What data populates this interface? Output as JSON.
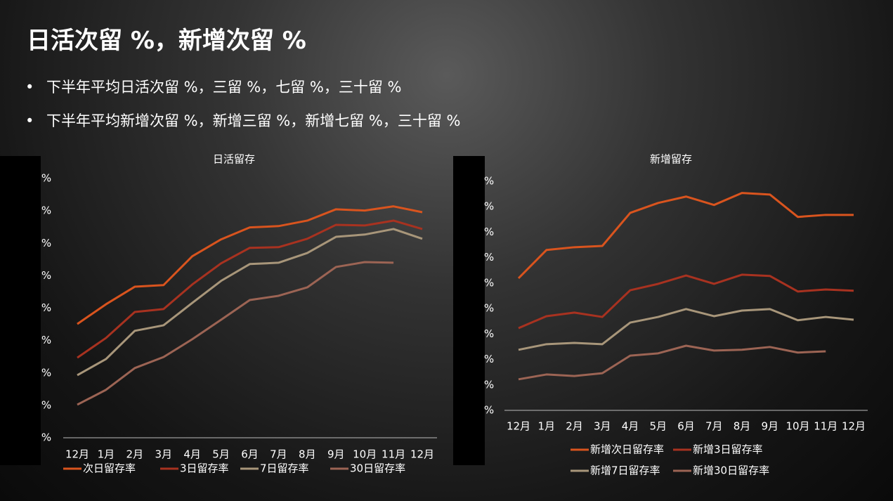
{
  "header": {
    "title": "日活次留 %，新增次留 %"
  },
  "bullets": [
    "下半年平均日活次留 %，三留 %，七留 %，三十留  %",
    "下半年平均新增次留 %，新增三留 %，新增七留 %，三十留  %"
  ],
  "chart_data": [
    {
      "type": "line",
      "title": "日活留存",
      "categories": [
        "12月",
        "1月",
        "2月",
        "3月",
        "4月",
        "5月",
        "6月",
        "7月",
        "8月",
        "9月",
        "10月",
        "11月",
        "12月"
      ],
      "ylim": [
        0,
        8
      ],
      "yticks": [
        {
          "value": 0,
          "label": "%"
        },
        {
          "value": 1,
          "label": "%"
        },
        {
          "value": 2,
          "label": "%"
        },
        {
          "value": 3,
          "label": "%"
        },
        {
          "value": 4,
          "label": "%"
        },
        {
          "value": 5,
          "label": "%"
        },
        {
          "value": 6,
          "label": "%"
        },
        {
          "value": 7,
          "label": "%"
        },
        {
          "value": 8,
          "label": "%"
        }
      ],
      "series": [
        {
          "name": "次日留存率",
          "color": "#d9541e",
          "values": [
            3.51,
            4.12,
            4.66,
            4.71,
            5.6,
            6.12,
            6.49,
            6.53,
            6.7,
            7.05,
            7.01,
            7.14,
            6.96
          ]
        },
        {
          "name": "3日留存率",
          "color": "#a83220",
          "values": [
            2.47,
            3.08,
            3.88,
            3.97,
            4.73,
            5.38,
            5.86,
            5.88,
            6.14,
            6.57,
            6.55,
            6.7,
            6.44
          ]
        },
        {
          "name": "7日留存率",
          "color": "#a8967a",
          "values": [
            1.93,
            2.43,
            3.3,
            3.47,
            4.16,
            4.84,
            5.36,
            5.4,
            5.7,
            6.2,
            6.27,
            6.44,
            6.14
          ]
        },
        {
          "name": "30日留存率",
          "color": "#9c6454",
          "values": [
            1.02,
            1.48,
            2.15,
            2.49,
            3.04,
            3.64,
            4.25,
            4.38,
            4.64,
            5.27,
            5.42,
            5.4,
            null
          ]
        }
      ]
    },
    {
      "type": "line",
      "title": "新增留存",
      "categories": [
        "12月",
        "1月",
        "2月",
        "3月",
        "4月",
        "5月",
        "6月",
        "7月",
        "8月",
        "9月",
        "10月",
        "11月",
        "12月"
      ],
      "ylim": [
        0,
        9
      ],
      "yticks": [
        {
          "value": 0,
          "label": "%"
        },
        {
          "value": 1,
          "label": "%"
        },
        {
          "value": 2,
          "label": "%"
        },
        {
          "value": 3,
          "label": "%"
        },
        {
          "value": 4,
          "label": "%"
        },
        {
          "value": 5,
          "label": "%"
        },
        {
          "value": 6,
          "label": "%"
        },
        {
          "value": 7,
          "label": "%"
        },
        {
          "value": 8,
          "label": "%"
        },
        {
          "value": 9,
          "label": "%"
        }
      ],
      "series": [
        {
          "name": "新增次日留存率",
          "color": "#d9541e",
          "values": [
            5.19,
            6.3,
            6.41,
            6.46,
            7.76,
            8.15,
            8.4,
            8.07,
            8.54,
            8.48,
            7.6,
            7.68,
            7.68
          ]
        },
        {
          "name": "新增3日留存率",
          "color": "#a83220",
          "values": [
            3.23,
            3.7,
            3.84,
            3.67,
            4.72,
            4.97,
            5.3,
            4.97,
            5.33,
            5.28,
            4.67,
            4.75,
            4.7
          ]
        },
        {
          "name": "新增7日留存率",
          "color": "#a8967a",
          "values": [
            2.38,
            2.6,
            2.65,
            2.6,
            3.45,
            3.67,
            3.98,
            3.7,
            3.92,
            3.98,
            3.54,
            3.67,
            3.56
          ]
        },
        {
          "name": "新增30日留存率",
          "color": "#9c6454",
          "values": [
            1.22,
            1.41,
            1.35,
            1.46,
            2.15,
            2.24,
            2.54,
            2.35,
            2.38,
            2.49,
            2.27,
            2.32,
            null
          ]
        }
      ]
    }
  ]
}
